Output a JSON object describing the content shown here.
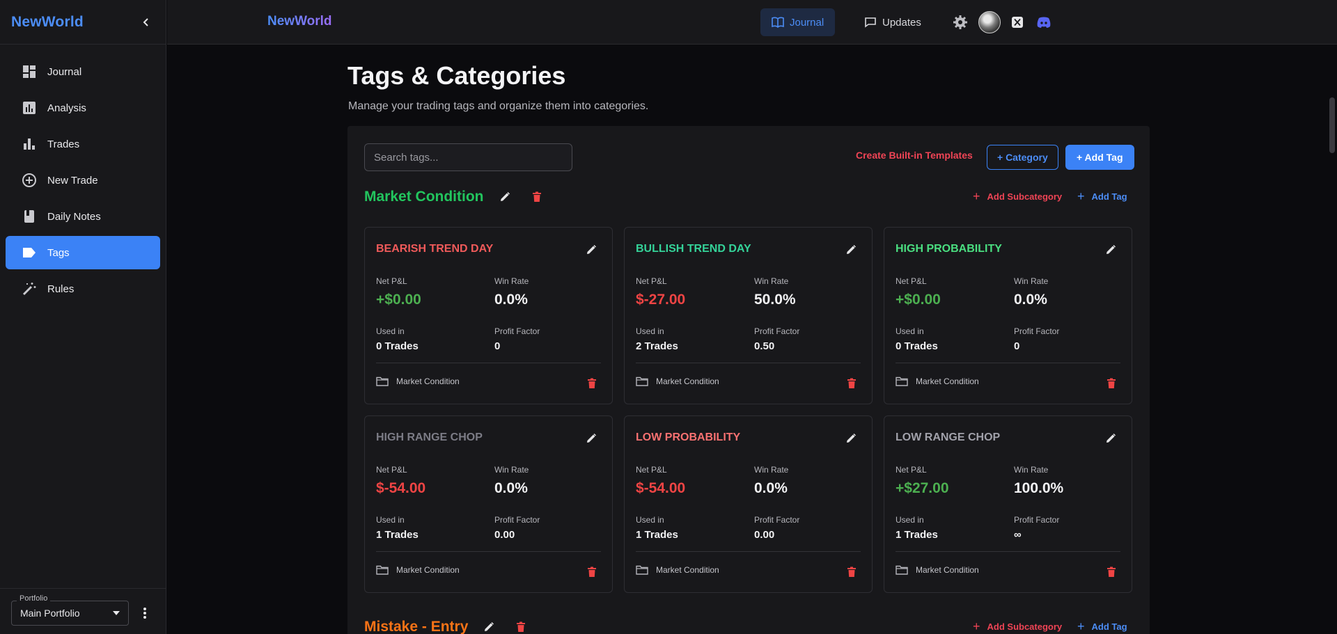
{
  "sidebar": {
    "brand": "NewWorld",
    "items": [
      {
        "label": "Journal",
        "icon": "dashboard-icon"
      },
      {
        "label": "Analysis",
        "icon": "analytics-icon"
      },
      {
        "label": "Trades",
        "icon": "bar-chart-icon"
      },
      {
        "label": "New Trade",
        "icon": "add-circle-icon"
      },
      {
        "label": "Daily Notes",
        "icon": "book-icon"
      },
      {
        "label": "Tags",
        "icon": "tag-icon",
        "active": true
      },
      {
        "label": "Rules",
        "icon": "magic-wand-icon"
      }
    ],
    "portfolio": {
      "legend": "Portfolio",
      "value": "Main Portfolio"
    }
  },
  "topbar": {
    "brand": "NewWorld",
    "tabs": [
      {
        "label": "Journal",
        "icon": "book-open-icon",
        "active": true
      },
      {
        "label": "Updates",
        "icon": "chat-icon"
      }
    ]
  },
  "page": {
    "title": "Tags & Categories",
    "subtitle": "Manage your trading tags and organize them into categories."
  },
  "toolbar": {
    "search_placeholder": "Search tags...",
    "templates_label": "Create Built-in Templates",
    "category_label": "+ Category",
    "add_tag_label": "+ Add Tag"
  },
  "labels": {
    "net_pnl": "Net P&L",
    "win_rate": "Win Rate",
    "used_in": "Used in",
    "profit_factor": "Profit Factor",
    "add_subcategory": "Add Subcategory",
    "add_tag": "Add Tag"
  },
  "categories": [
    {
      "name": "Market Condition",
      "color": "#22c55e",
      "tags": [
        {
          "name": "BEARISH TREND DAY",
          "color": "#f05a5a",
          "net_pnl": "+$0.00",
          "pnl_sign": "pos",
          "win_rate": "0.0%",
          "used_in": "0 Trades",
          "profit_factor": "0",
          "category": "Market Condition"
        },
        {
          "name": "BULLISH TREND DAY",
          "color": "#34d399",
          "net_pnl": "$-27.00",
          "pnl_sign": "neg",
          "win_rate": "50.0%",
          "used_in": "2 Trades",
          "profit_factor": "0.50",
          "category": "Market Condition"
        },
        {
          "name": "HIGH PROBABILITY",
          "color": "#4ade80",
          "net_pnl": "+$0.00",
          "pnl_sign": "pos",
          "win_rate": "0.0%",
          "used_in": "0 Trades",
          "profit_factor": "0",
          "category": "Market Condition"
        },
        {
          "name": "HIGH RANGE CHOP",
          "color": "#7c7c86",
          "net_pnl": "$-54.00",
          "pnl_sign": "neg",
          "win_rate": "0.0%",
          "used_in": "1 Trades",
          "profit_factor": "0.00",
          "category": "Market Condition"
        },
        {
          "name": "LOW PROBABILITY",
          "color": "#f87171",
          "net_pnl": "$-54.00",
          "pnl_sign": "neg",
          "win_rate": "0.0%",
          "used_in": "1 Trades",
          "profit_factor": "0.00",
          "category": "Market Condition"
        },
        {
          "name": "LOW RANGE CHOP",
          "color": "#a1a1aa",
          "net_pnl": "+$27.00",
          "pnl_sign": "pos",
          "win_rate": "100.0%",
          "used_in": "1 Trades",
          "profit_factor": "∞",
          "category": "Market Condition"
        }
      ]
    },
    {
      "name": "Mistake - Entry",
      "color": "#f97316",
      "tags": []
    }
  ]
}
